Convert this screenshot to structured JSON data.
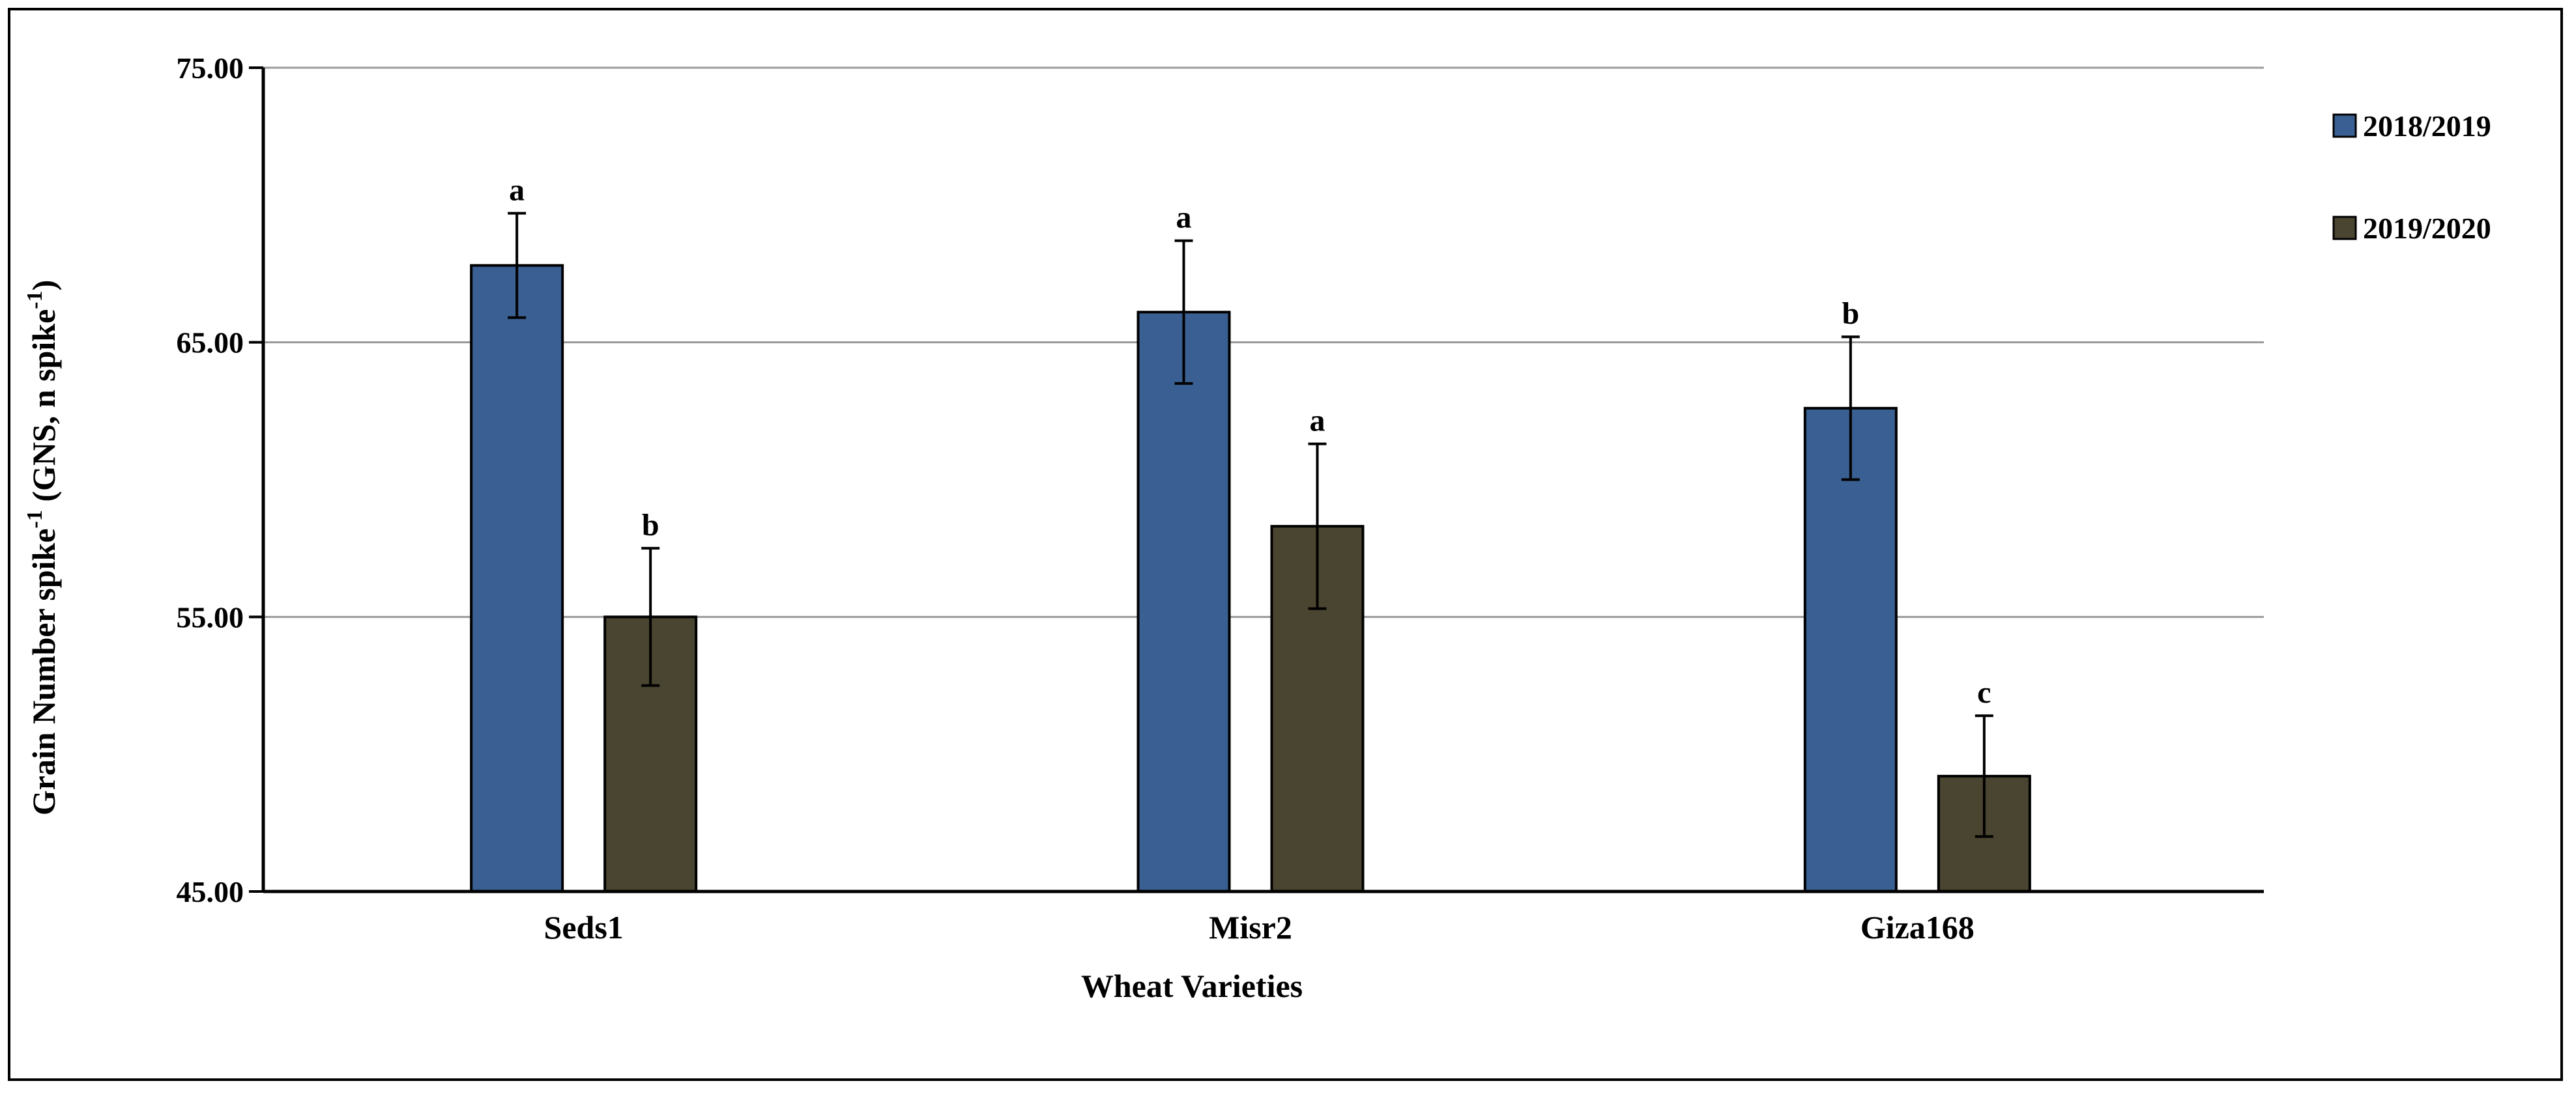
{
  "chart_data": {
    "type": "bar",
    "title": "",
    "xlabel": "Wheat Varieties",
    "ylabel": "Grain Number spike",
    "ylabel_sup1": "-1",
    "ylabel_mid": " (GNS, n spike",
    "ylabel_sup2": "-1",
    "ylabel_end": ")",
    "ylim": [
      45,
      75
    ],
    "yticks": [
      45,
      55,
      65,
      75
    ],
    "ytick_labels": [
      "45.00",
      "55.00",
      "65.00",
      "75.00"
    ],
    "grid": true,
    "legend_position": "top-right",
    "categories": [
      "Seds1",
      "Misr2",
      "Giza168"
    ],
    "series": [
      {
        "name": "2018/2019",
        "color": "#3a5f92",
        "values": [
          67.8,
          66.1,
          62.6
        ],
        "errors": [
          1.9,
          2.6,
          2.6
        ],
        "letters": [
          "a",
          "a",
          "b"
        ]
      },
      {
        "name": "2019/2020",
        "color": "#4a4530",
        "values": [
          55.0,
          58.3,
          49.2
        ],
        "errors": [
          2.5,
          3.0,
          2.2
        ],
        "letters": [
          "b",
          "a",
          "c"
        ]
      }
    ]
  }
}
